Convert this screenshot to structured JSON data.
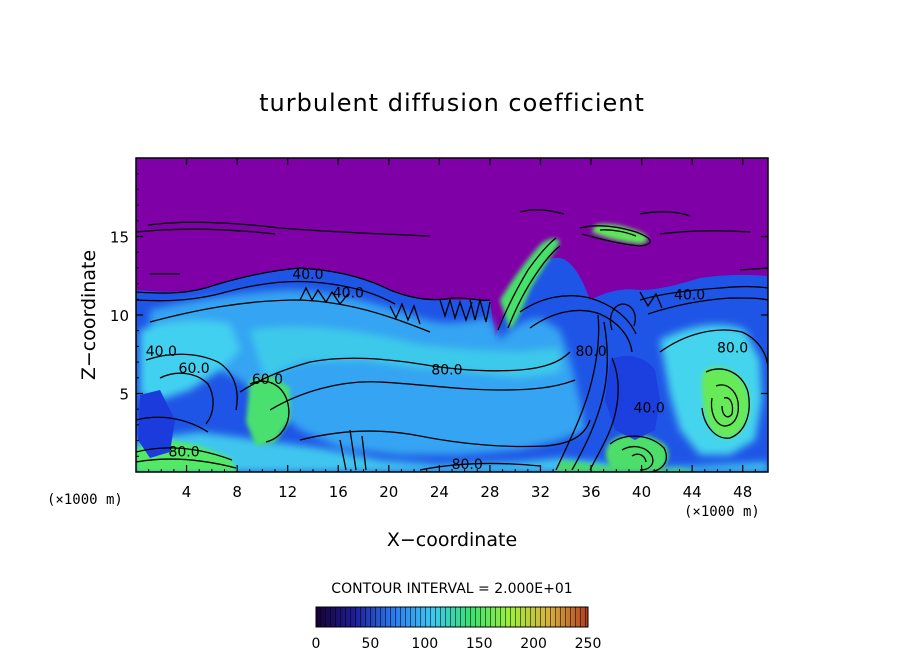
{
  "chart_data": {
    "type": "heatmap",
    "title": "turbulent diffusion coefficient",
    "xlabel": "X−coordinate",
    "ylabel": "Z−coordinate",
    "x_unit_label": "(×1000 m)",
    "xlim": [
      0,
      50
    ],
    "ylim": [
      0,
      20
    ],
    "x_ticks": [
      4,
      8,
      12,
      16,
      20,
      24,
      28,
      32,
      36,
      40,
      44,
      48
    ],
    "y_ticks": [
      5,
      10,
      15
    ],
    "contour_interval_label": "CONTOUR INTERVAL = 2.000E+01",
    "contour_labels": [
      {
        "text": "40.0",
        "x": 13.6,
        "z": 12.3
      },
      {
        "text": "40.0",
        "x": 16.8,
        "z": 11.1
      },
      {
        "text": "40.0",
        "x": 43.8,
        "z": 11.0
      },
      {
        "text": "40.0",
        "x": 2.0,
        "z": 7.4
      },
      {
        "text": "40.0",
        "x": 40.6,
        "z": 3.8
      },
      {
        "text": "80.0",
        "x": 24.6,
        "z": 6.2
      },
      {
        "text": "80.0",
        "x": 47.2,
        "z": 7.6
      },
      {
        "text": "80.0",
        "x": 3.8,
        "z": 1.0
      },
      {
        "text": "80.0",
        "x": 26.2,
        "z": 0.2
      },
      {
        "text": "80.0",
        "x": 36.0,
        "z": 7.4
      },
      {
        "text": "60.0",
        "x": 10.4,
        "z": 5.6
      },
      {
        "text": "60.0",
        "x": 4.6,
        "z": 6.3
      }
    ],
    "colorbar": {
      "min": 0,
      "max": 250,
      "ticks": [
        0,
        50,
        100,
        150,
        200,
        250
      ],
      "colors": [
        "#1a0033",
        "#1e1e9a",
        "#2d7bf0",
        "#3cc8f0",
        "#3ce070",
        "#9fef3c",
        "#d8b040",
        "#b04020"
      ]
    },
    "background_color": "#7f00a6"
  }
}
